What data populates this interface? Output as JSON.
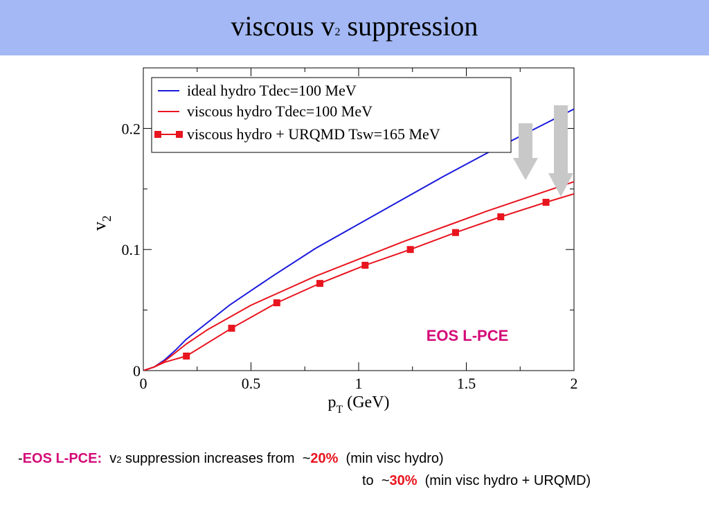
{
  "slide": {
    "title_main": "viscous v",
    "title_sub": "2",
    "title_rest": " suppression"
  },
  "bullet": {
    "dash": "-",
    "eos_label": "EOS L-PCE:",
    "v_letter": "v",
    "v_sub": "2",
    "text1": " suppression increases from ",
    "tilde1": "~",
    "pct1": "20%",
    "paren1": " (min visc  hydro)",
    "to_text": "to ",
    "tilde2": "~",
    "pct2": "30%",
    "paren2": " (min visc hydro + URQMD)"
  },
  "colors": {
    "title_bar": "#a3b8f4",
    "ideal": "#1a1adc",
    "viscous": "#e8141e",
    "urqmd": "#e8141e",
    "annotation": "#d40a78",
    "arrow": "#c8c8c8"
  },
  "chart_data": {
    "type": "line",
    "xlim": [
      0,
      2
    ],
    "ylim": [
      0,
      0.25
    ],
    "x_ticks": [
      0,
      0.5,
      1,
      1.5,
      2
    ],
    "x_tick_labels": [
      "0",
      "0.5",
      "1",
      "1.5",
      "2"
    ],
    "y_ticks": [
      0,
      0.1,
      0.2
    ],
    "y_tick_labels": [
      "0",
      "0.1",
      "0.2"
    ],
    "xlabel_main": "p",
    "xlabel_sub": "T",
    "xlabel_rest": " (GeV)",
    "ylabel_main": "v",
    "ylabel_sub": "2",
    "legend_position": "top-left",
    "annotation": "EOS L-PCE",
    "series": [
      {
        "name": "ideal hydro Tdec=100 MeV",
        "color": "#1a1adc",
        "markers": false,
        "x": [
          0,
          0.05,
          0.1,
          0.15,
          0.2,
          0.3,
          0.4,
          0.5,
          0.6,
          0.8,
          1.0,
          1.2,
          1.4,
          1.6,
          1.8,
          2.0
        ],
        "y": [
          0,
          0.003,
          0.009,
          0.017,
          0.026,
          0.04,
          0.054,
          0.066,
          0.078,
          0.101,
          0.121,
          0.141,
          0.161,
          0.18,
          0.198,
          0.216
        ]
      },
      {
        "name": "viscous hydro Tdec=100 MeV",
        "color": "#e8141e",
        "markers": false,
        "x": [
          0,
          0.05,
          0.1,
          0.15,
          0.2,
          0.3,
          0.4,
          0.5,
          0.6,
          0.8,
          1.0,
          1.2,
          1.4,
          1.6,
          1.8,
          2.0
        ],
        "y": [
          0,
          0.003,
          0.008,
          0.015,
          0.022,
          0.034,
          0.044,
          0.054,
          0.062,
          0.078,
          0.092,
          0.106,
          0.119,
          0.132,
          0.144,
          0.156
        ]
      },
      {
        "name": "viscous hydro + URQMD Tsw=165 MeV",
        "color": "#e8141e",
        "markers": true,
        "x": [
          0,
          0.05,
          0.1,
          0.2,
          0.41,
          0.62,
          0.82,
          1.03,
          1.24,
          1.45,
          1.66,
          1.87,
          2.0
        ],
        "y": [
          0,
          0.003,
          0.007,
          0.012,
          0.035,
          0.056,
          0.072,
          0.087,
          0.1,
          0.114,
          0.127,
          0.139,
          0.146
        ],
        "marker_x": [
          0.2,
          0.41,
          0.62,
          0.82,
          1.03,
          1.24,
          1.45,
          1.66,
          1.87
        ],
        "marker_y": [
          0.012,
          0.035,
          0.056,
          0.072,
          0.087,
          0.1,
          0.114,
          0.127,
          0.139
        ]
      }
    ]
  }
}
